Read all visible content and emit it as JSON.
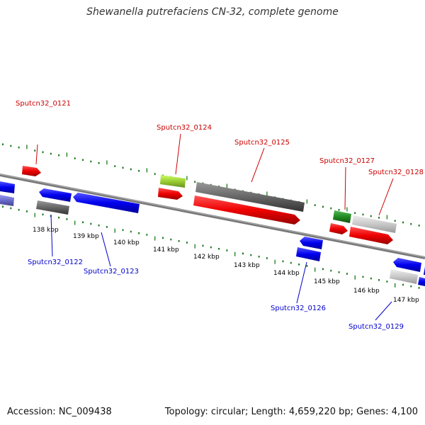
{
  "title": "Shewanella putrefaciens CN-32, complete genome",
  "footer": {
    "accession": "Accession: NC_009438",
    "topology": "Topology: circular; Length: 4,659,220 bp; Genes: 4,100"
  },
  "kbp_ticks": [
    "138 kbp",
    "139 kbp",
    "140 kbp",
    "141 kbp",
    "142 kbp",
    "143 kbp",
    "144 kbp",
    "145 kbp",
    "146 kbp",
    "147 kbp"
  ],
  "gene_labels": {
    "forward": [
      "Sputcn32_0121",
      "Sputcn32_0124",
      "Sputcn32_0125",
      "Sputcn32_0127",
      "Sputcn32_0128"
    ],
    "reverse": [
      "Sputcn32_0122",
      "Sputcn32_0123",
      "Sputcn32_0126",
      "Sputcn32_0129"
    ]
  },
  "colors": {
    "forward_label": "#cc0000",
    "reverse_label": "#0000cc",
    "red_gene": "#ee0000",
    "blue_gene": "#0000ee",
    "dark_gray_gene": "#666666",
    "light_gray_gene": "#c8c8c8",
    "green_gene": "#228b22",
    "lime_gene": "#9acd32",
    "slate_gene": "#6a6acd",
    "backbone": "#888888",
    "tick_mark": "#1a7a1a"
  }
}
